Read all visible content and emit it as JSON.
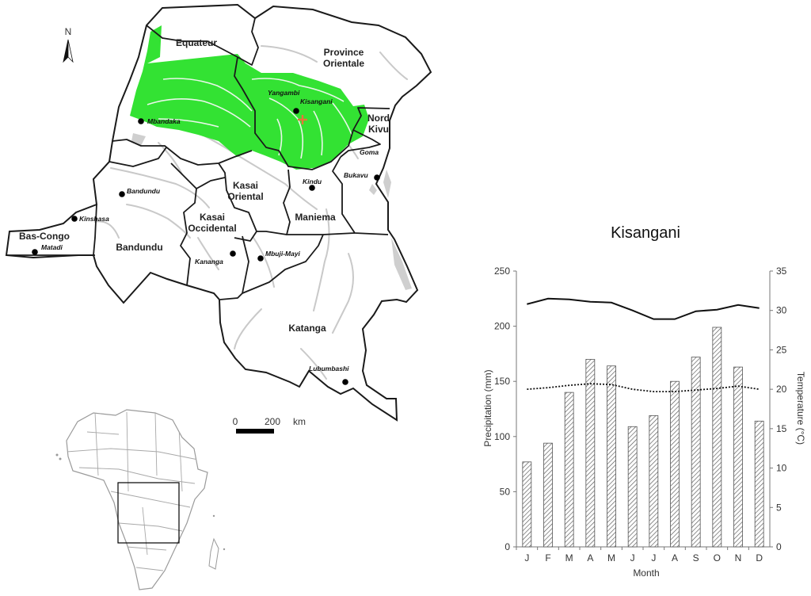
{
  "map": {
    "north": "N",
    "provinces": [
      {
        "name": "Equateur",
        "lines": [
          "Equateur"
        ]
      },
      {
        "name": "Province Orientale",
        "lines": [
          "Province",
          "Orientale"
        ]
      },
      {
        "name": "Nord Kivu",
        "lines": [
          "Nord",
          "Kivu"
        ]
      },
      {
        "name": "Kasai Oriental",
        "lines": [
          "Kasai",
          "Oriental"
        ]
      },
      {
        "name": "Maniema",
        "lines": [
          "Maniema"
        ]
      },
      {
        "name": "Bandundu",
        "lines": [
          "Bandundu"
        ]
      },
      {
        "name": "Kasai Occidental",
        "lines": [
          "Kasai",
          "Occidental"
        ]
      },
      {
        "name": "Bas-Congo",
        "lines": [
          "Bas-Congo"
        ]
      },
      {
        "name": "Katanga",
        "lines": [
          "Katanga"
        ]
      }
    ],
    "cities": [
      "Yangambi",
      "Kisangani",
      "Mbandaka",
      "Goma",
      "Bukavu",
      "Bandundu",
      "Kindu",
      "Kinshasa",
      "Matadi",
      "Kananga",
      "Mbuji-Mayi",
      "Lubumbashi"
    ],
    "scale": {
      "start": "0",
      "mid": "200",
      "unit": "km"
    },
    "colors": {
      "forest": "#33e233",
      "border": "#1a1a1a",
      "rivers": "#c9c9c9",
      "site": "#e8743a"
    }
  },
  "chart_data": {
    "type": "bar",
    "title": "Kisangani",
    "xlabel": "Month",
    "ylabel": "Precipitation (mm)",
    "y2label": "Temperature (°C)",
    "categories": [
      "J",
      "F",
      "M",
      "A",
      "M",
      "J",
      "J",
      "A",
      "S",
      "O",
      "N",
      "D"
    ],
    "ylim": [
      0,
      250
    ],
    "y2lim": [
      0,
      35
    ],
    "yticks": [
      0,
      50,
      100,
      150,
      200,
      250
    ],
    "y2ticks": [
      0,
      5,
      10,
      15,
      20,
      25,
      30,
      35
    ],
    "precipitation": [
      77,
      94,
      140,
      170,
      164,
      109,
      119,
      150,
      172,
      199,
      163,
      114
    ],
    "temp_max": [
      30.8,
      31.5,
      31.4,
      31.1,
      31.0,
      30.0,
      28.9,
      28.9,
      29.9,
      30.1,
      30.7,
      30.3
    ],
    "temp_min": [
      20.0,
      20.2,
      20.5,
      20.7,
      20.6,
      20.0,
      19.7,
      19.7,
      19.9,
      20.1,
      20.4,
      20.0
    ],
    "grid": false,
    "legend": "none"
  }
}
